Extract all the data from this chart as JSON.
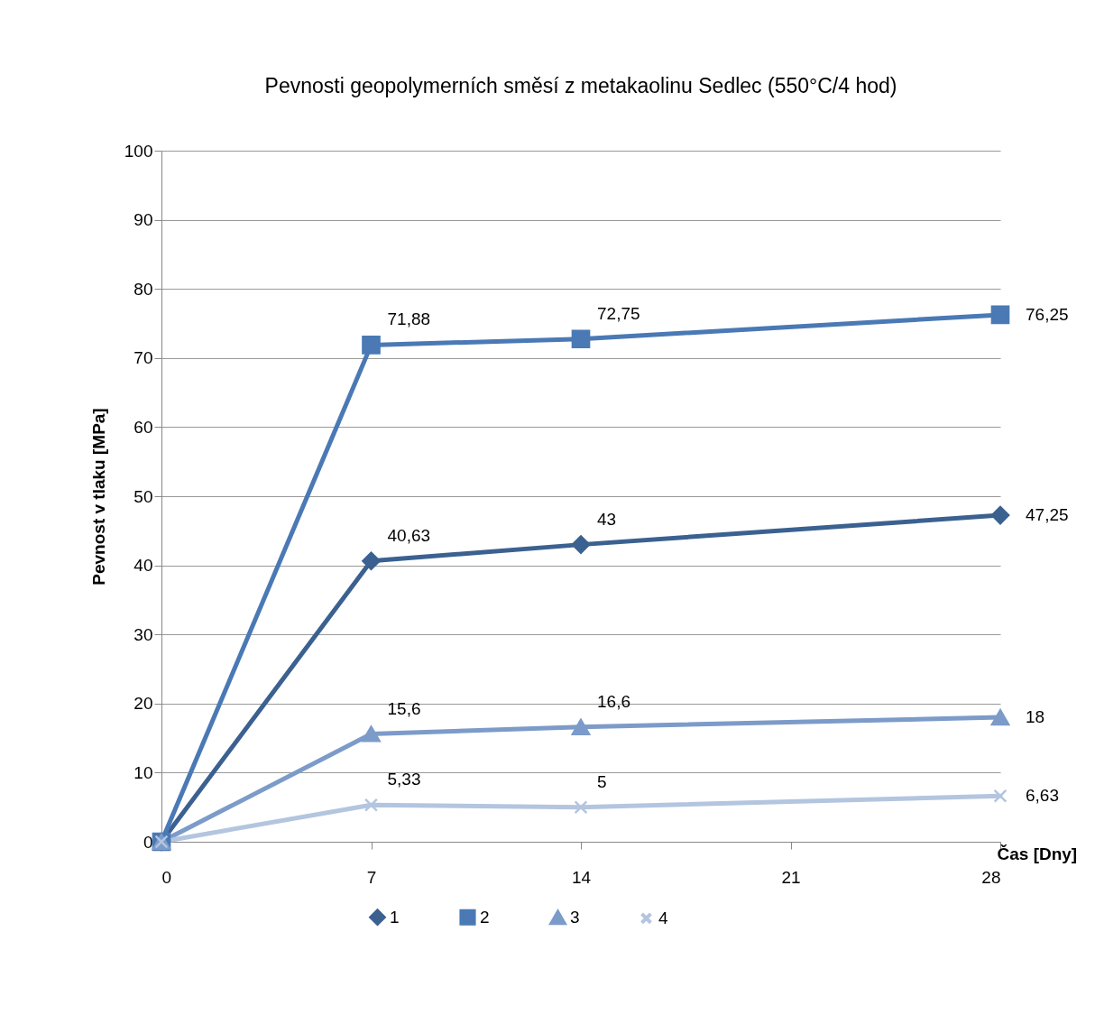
{
  "chart_data": {
    "type": "line",
    "title": "Pevnosti geopolymerních směsí z metakaolinu Sedlec (550°C/4 hod)",
    "xlabel": "Čas [Dny]",
    "ylabel": "Pevnost v tlaku [MPa]",
    "x": [
      0,
      7,
      14,
      28
    ],
    "xlim": [
      0,
      28
    ],
    "xticks": [
      0,
      7,
      14,
      21,
      28
    ],
    "ylim": [
      0,
      100
    ],
    "yticks": [
      0,
      10,
      20,
      30,
      40,
      50,
      60,
      70,
      80,
      90,
      100
    ],
    "grid": "y",
    "legend": "bottom",
    "line_style": "solid",
    "series": [
      {
        "name": "1",
        "color": "#3b6190",
        "marker": "diamond",
        "values": [
          0,
          40.63,
          43,
          47.25
        ],
        "value_labels": [
          null,
          "40,63",
          "43",
          "47,25"
        ]
      },
      {
        "name": "2",
        "color": "#4a79b5",
        "marker": "square",
        "values": [
          0,
          71.88,
          72.75,
          76.25
        ],
        "value_labels": [
          null,
          "71,88",
          "72,75",
          "76,25"
        ]
      },
      {
        "name": "3",
        "color": "#7c9bc9",
        "marker": "triangle",
        "values": [
          0,
          15.6,
          16.6,
          18
        ],
        "value_labels": [
          null,
          "15,6",
          "16,6",
          "18"
        ]
      },
      {
        "name": "4",
        "color": "#b3c5df",
        "marker": "cross",
        "values": [
          0,
          5.33,
          5,
          6.63
        ],
        "value_labels": [
          null,
          "5,33",
          "5",
          "6,63"
        ]
      }
    ]
  }
}
